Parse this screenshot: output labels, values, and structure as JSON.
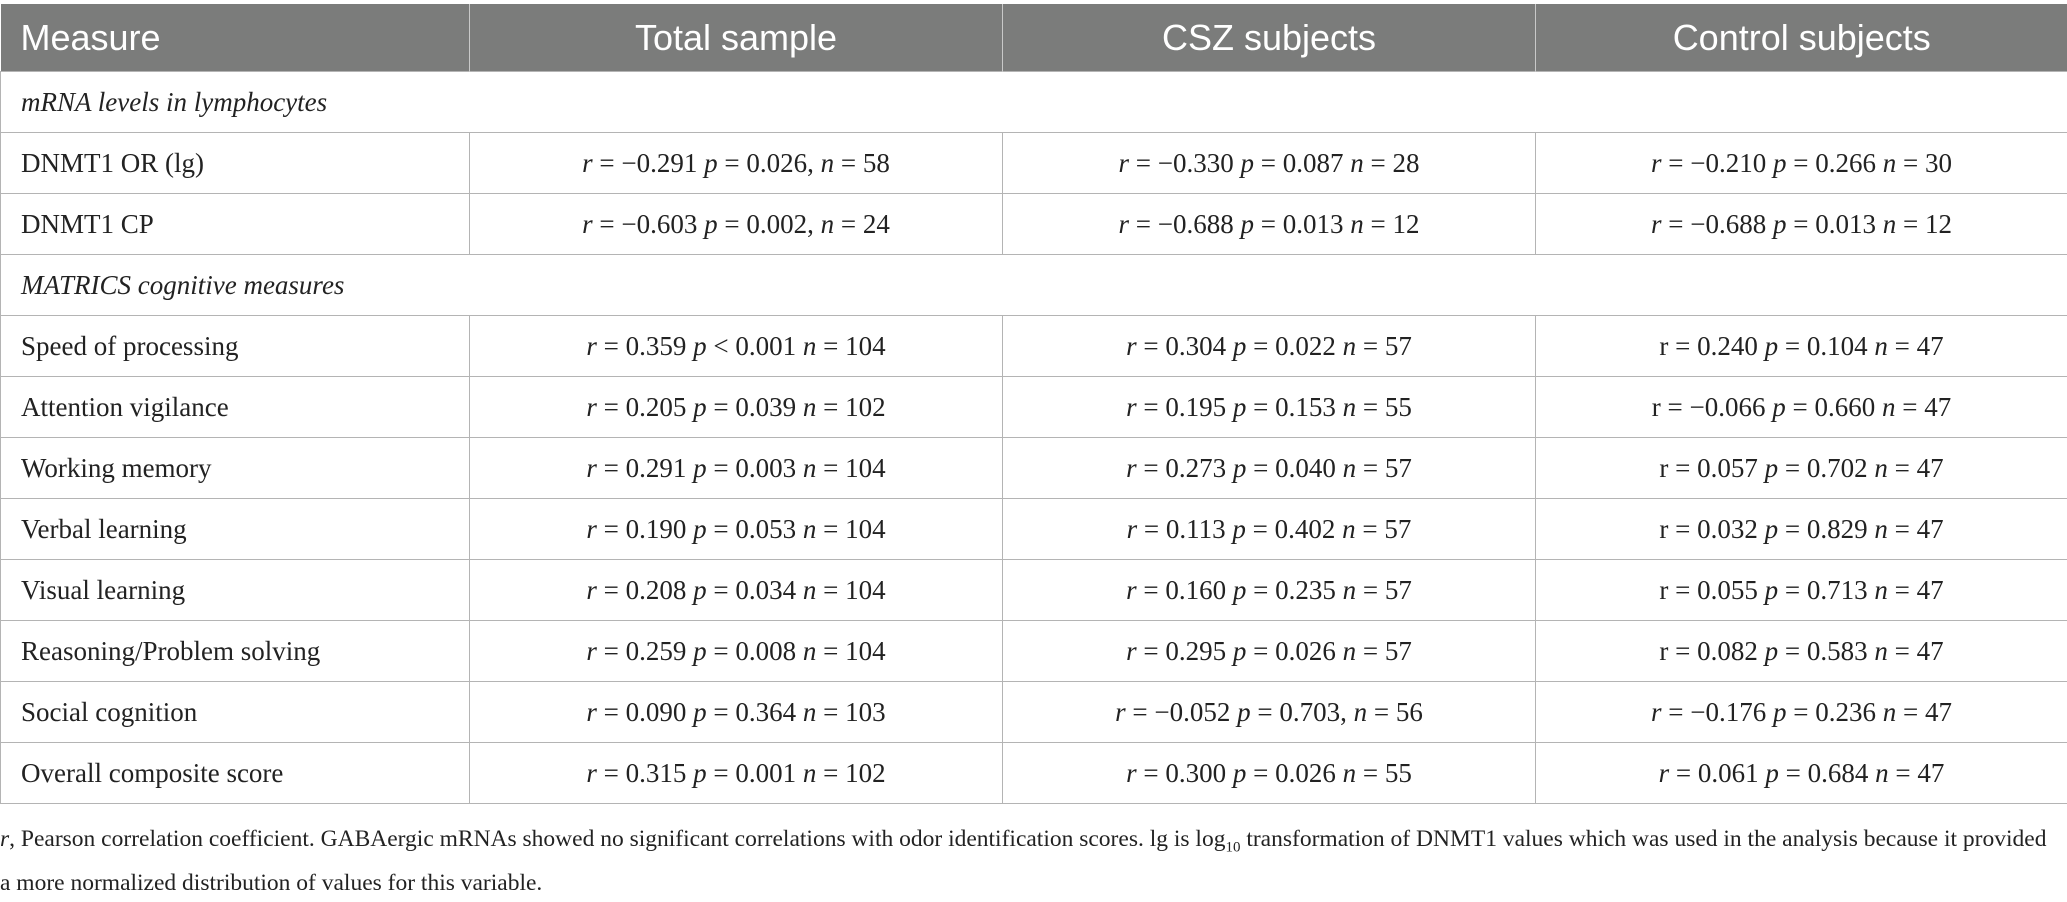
{
  "header": {
    "measure": "Measure",
    "total": "Total sample",
    "csz": "CSZ subjects",
    "control": "Control subjects"
  },
  "sections": {
    "mrna": "mRNA levels in lymphocytes",
    "matrics": "MATRICS cognitive measures"
  },
  "rows": [
    {
      "label": "DNMT1 OR (lg)",
      "total": {
        "r_sym": "r",
        "r": " = −0.291 ",
        "p_sym": "p",
        "p": " = 0.026, ",
        "n_sym": "n",
        "n": " = 58"
      },
      "csz": {
        "r_sym": "r",
        "r": " = −0.330 ",
        "p_sym": "p",
        "p": " = 0.087 ",
        "n_sym": "n",
        "n": " = 28"
      },
      "control": {
        "r_sym": "r",
        "r": " = −0.210 ",
        "p_sym": "p",
        "p": " = 0.266 ",
        "n_sym": "n",
        "n": " = 30"
      }
    },
    {
      "label": "DNMT1 CP",
      "total": {
        "r_sym": "r",
        "r": " = −0.603 ",
        "p_sym": "p",
        "p": " = 0.002, ",
        "n_sym": "n",
        "n": " = 24"
      },
      "csz": {
        "r_sym": "r",
        "r": " = −0.688 ",
        "p_sym": "p",
        "p": " = 0.013 ",
        "n_sym": "n",
        "n": " = 12"
      },
      "control": {
        "r_sym": "r",
        "r": " = −0.688 ",
        "p_sym": "p",
        "p": " = 0.013 ",
        "n_sym": "n",
        "n": " = 12"
      }
    },
    {
      "label": "Speed of processing",
      "total": {
        "r_sym": "r",
        "r": " = 0.359 ",
        "p_sym": "p",
        "p": " < 0.001 ",
        "n_sym": "n",
        "n": " = 104"
      },
      "csz": {
        "r_sym": "r",
        "r": " = 0.304 ",
        "p_sym": "p",
        "p": " = 0.022 ",
        "n_sym": "n",
        "n": " = 57"
      },
      "control": {
        "r_sym": "r",
        "r": " = 0.240 ",
        "p_sym": "p",
        "p": " = 0.104 ",
        "n_sym": "n",
        "n": " = 47"
      }
    },
    {
      "label": "Attention vigilance",
      "total": {
        "r_sym": "r",
        "r": " = 0.205 ",
        "p_sym": "p",
        "p": " = 0.039 ",
        "n_sym": "n",
        "n": " = 102"
      },
      "csz": {
        "r_sym": "r",
        "r": " = 0.195 ",
        "p_sym": "p",
        "p": " = 0.153 ",
        "n_sym": "n",
        "n": " = 55"
      },
      "control": {
        "r_sym": "r",
        "r": " = −0.066 ",
        "p_sym": "p",
        "p": " = 0.660 ",
        "n_sym": "n",
        "n": " = 47"
      }
    },
    {
      "label": "Working memory",
      "total": {
        "r_sym": "r",
        "r": " = 0.291 ",
        "p_sym": "p",
        "p": " = 0.003 ",
        "n_sym": "n",
        "n": " = 104"
      },
      "csz": {
        "r_sym": "r",
        "r": " = 0.273 ",
        "p_sym": "p",
        "p": " = 0.040 ",
        "n_sym": "n",
        "n": " = 57"
      },
      "control": {
        "r_sym": "r",
        "r": " = 0.057 ",
        "p_sym": "p",
        "p": " = 0.702 ",
        "n_sym": "n",
        "n": " = 47"
      }
    },
    {
      "label": "Verbal learning",
      "total": {
        "r_sym": "r",
        "r": " = 0.190 ",
        "p_sym": "p",
        "p": " = 0.053 ",
        "n_sym": "n",
        "n": " = 104"
      },
      "csz": {
        "r_sym": "r",
        "r": " = 0.113 ",
        "p_sym": "p",
        "p": " = 0.402 ",
        "n_sym": "n",
        "n": " = 57"
      },
      "control": {
        "r_sym": "r",
        "r": " = 0.032 ",
        "p_sym": "p",
        "p": " = 0.829 ",
        "n_sym": "n",
        "n": " = 47"
      }
    },
    {
      "label": "Visual learning",
      "total": {
        "r_sym": "r",
        "r": " = 0.208 ",
        "p_sym": "p",
        "p": " = 0.034 ",
        "n_sym": "n",
        "n": " = 104"
      },
      "csz": {
        "r_sym": "r",
        "r": " = 0.160 ",
        "p_sym": "p",
        "p": " = 0.235 ",
        "n_sym": "n",
        "n": " = 57"
      },
      "control": {
        "r_sym": "r",
        "r": " = 0.055 ",
        "p_sym": "p",
        "p": " = 0.713 ",
        "n_sym": "n",
        "n": " = 47"
      }
    },
    {
      "label": "Reasoning/Problem solving",
      "total": {
        "r_sym": "r",
        "r": " = 0.259 ",
        "p_sym": "p",
        "p": " = 0.008 ",
        "n_sym": "n",
        "n": " = 104"
      },
      "csz": {
        "r_sym": "r",
        "r": " = 0.295 ",
        "p_sym": "p",
        "p": " = 0.026 ",
        "n_sym": "n",
        "n": " = 57"
      },
      "control": {
        "r_sym": "r",
        "r": " = 0.082 ",
        "p_sym": "p",
        "p": " = 0.583 ",
        "n_sym": "n",
        "n": " = 47"
      }
    },
    {
      "label": "Social cognition",
      "total": {
        "r_sym": "r",
        "r": " = 0.090 ",
        "p_sym": "p",
        "p": " = 0.364 ",
        "n_sym": "n",
        "n": " = 103"
      },
      "csz": {
        "r_sym": "r",
        "r": " = −0.052 ",
        "p_sym": "p",
        "p": " = 0.703, ",
        "n_sym": "n",
        "n": " = 56"
      },
      "control": {
        "r_sym": "r",
        "r": " = −0.176 ",
        "p_sym": "p",
        "p": " = 0.236 ",
        "n_sym": "n",
        "n": " = 47"
      }
    },
    {
      "label": "Overall composite score",
      "total": {
        "r_sym": "r",
        "r": " = 0.315 ",
        "p_sym": "p",
        "p": " = 0.001 ",
        "n_sym": "n",
        "n": " = 102"
      },
      "csz": {
        "r_sym": "r",
        "r": " = 0.300 ",
        "p_sym": "p",
        "p": " = 0.026 ",
        "n_sym": "n",
        "n": " = 55"
      },
      "control": {
        "r_sym": "r",
        "r": " = 0.061 ",
        "p_sym": "p",
        "p": " = 0.684 ",
        "n_sym": "n",
        "n": " = 47"
      }
    }
  ],
  "footnote": {
    "r_sym": "r",
    "part1": ", Pearson correlation coefficient. GABAergic mRNAs showed no significant correlations with odor identification scores. lg is log",
    "sub": "10",
    "part2": " transformation of DNMT1 values which was used in the analysis because it provided a more normalized distribution of values for this variable."
  }
}
